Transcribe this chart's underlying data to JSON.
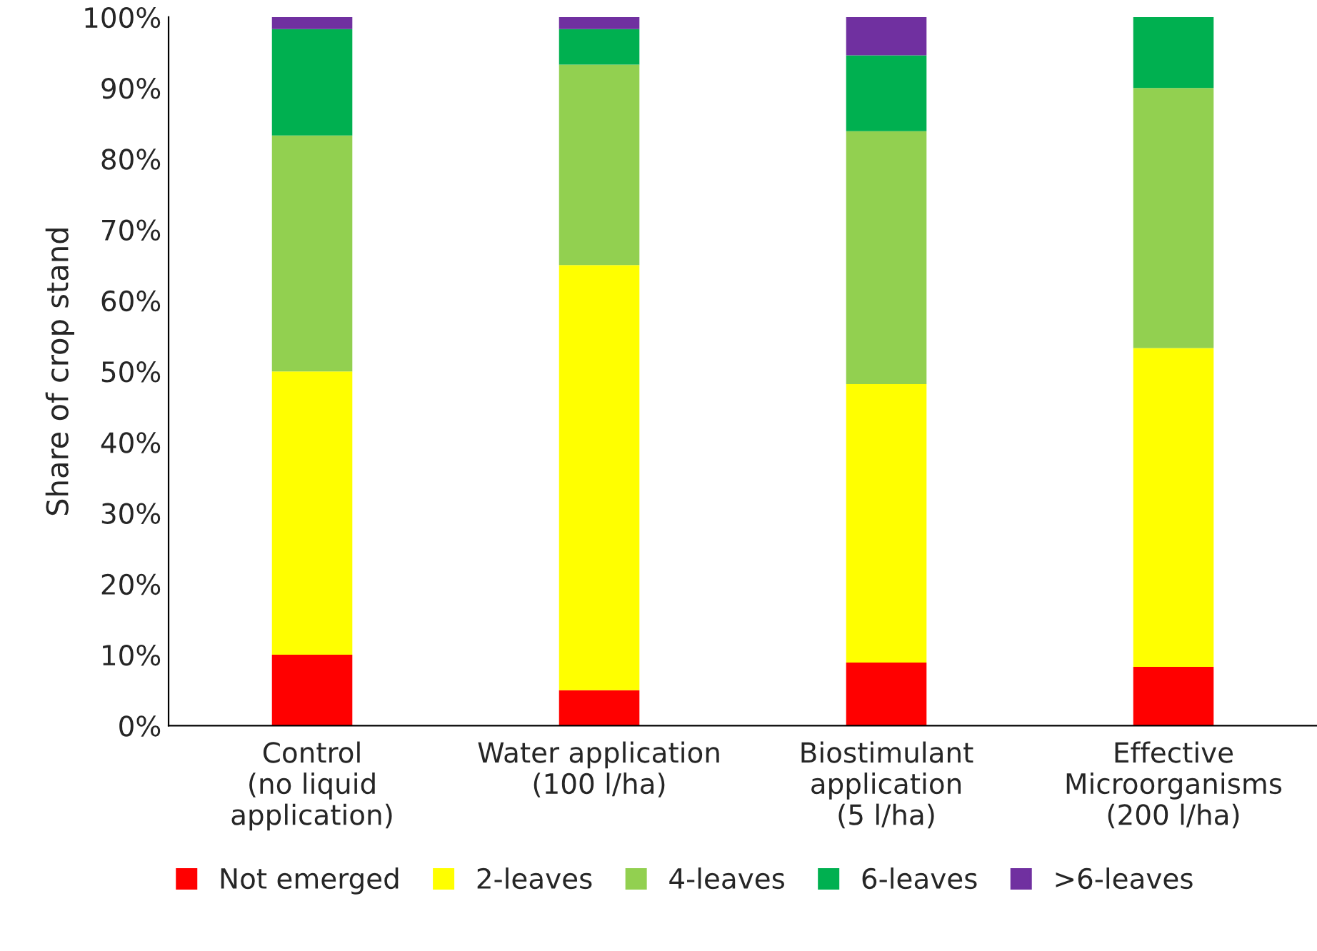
{
  "chart_data": {
    "type": "bar",
    "stacked": true,
    "ylabel": "Share of crop stand",
    "categories": [
      "Control\n(no liquid\napplication)",
      "Water application\n(100 l/ha)",
      "Biostimulant\napplication\n(5 l/ha)",
      "Effective\nMicroorganisms\n(200 l/ha)"
    ],
    "series": [
      {
        "name": "Not emerged",
        "color": "#ff0000",
        "values": [
          10,
          5,
          8.9,
          8.3
        ]
      },
      {
        "name": "2-leaves",
        "color": "#ffff00",
        "values": [
          40,
          60,
          39.3,
          45
        ]
      },
      {
        "name": "4-leaves",
        "color": "#92d050",
        "values": [
          33.3,
          28.3,
          35.7,
          36.7
        ]
      },
      {
        "name": "6-leaves",
        "color": "#00b050",
        "values": [
          15,
          5,
          10.7,
          10
        ]
      },
      {
        "name": ">6-leaves",
        "color": "#7030a0",
        "values": [
          1.7,
          1.7,
          5.4,
          0
        ]
      }
    ],
    "ylim": [
      0,
      100
    ],
    "yticks": [
      {
        "value": 0,
        "label": "0%"
      },
      {
        "value": 10,
        "label": "10%"
      },
      {
        "value": 20,
        "label": "20%"
      },
      {
        "value": 30,
        "label": "30%"
      },
      {
        "value": 40,
        "label": "40%"
      },
      {
        "value": 50,
        "label": "50%"
      },
      {
        "value": 60,
        "label": "60%"
      },
      {
        "value": 70,
        "label": "70%"
      },
      {
        "value": 80,
        "label": "80%"
      },
      {
        "value": 90,
        "label": "90%"
      },
      {
        "value": 100,
        "label": "100%"
      }
    ],
    "grid": false,
    "legend": "bottom"
  }
}
